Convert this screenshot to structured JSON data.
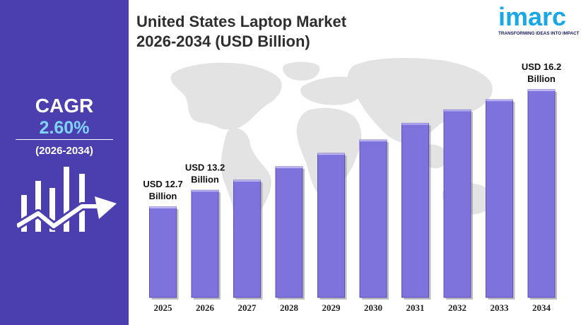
{
  "sidebar": {
    "cagr_label": "CAGR",
    "cagr_value": "2.60%",
    "cagr_period": "(2026-2034)"
  },
  "title": {
    "line1": "United States Laptop Market",
    "line2": "2026-2034 (USD Billion)"
  },
  "logo": {
    "word": "imarc",
    "tagline": "TRANSFORMING IDEAS INTO IMPACT"
  },
  "colors": {
    "sidebar": "#4b3fb0",
    "bar": "#7e73dc",
    "cagr_value": "#7fd3ff",
    "logo": "#1aa7e6"
  },
  "chart_data": {
    "type": "bar",
    "title": "United States Laptop Market 2026-2034 (USD Billion)",
    "categories": [
      "2025",
      "2026",
      "2027",
      "2028",
      "2029",
      "2030",
      "2031",
      "2032",
      "2033",
      "2034"
    ],
    "values": [
      12.7,
      13.2,
      13.5,
      13.9,
      14.3,
      14.7,
      15.2,
      15.6,
      15.9,
      16.2
    ],
    "data_labels": {
      "2025": [
        "USD 12.7",
        "Billion"
      ],
      "2026": [
        "USD 13.2",
        "Billion"
      ],
      "2034": [
        "USD 16.2",
        "Billion"
      ]
    },
    "xlabel": "",
    "ylabel": "",
    "ylim": [
      10.0,
      16.2
    ],
    "grid": false,
    "legend": "none"
  }
}
